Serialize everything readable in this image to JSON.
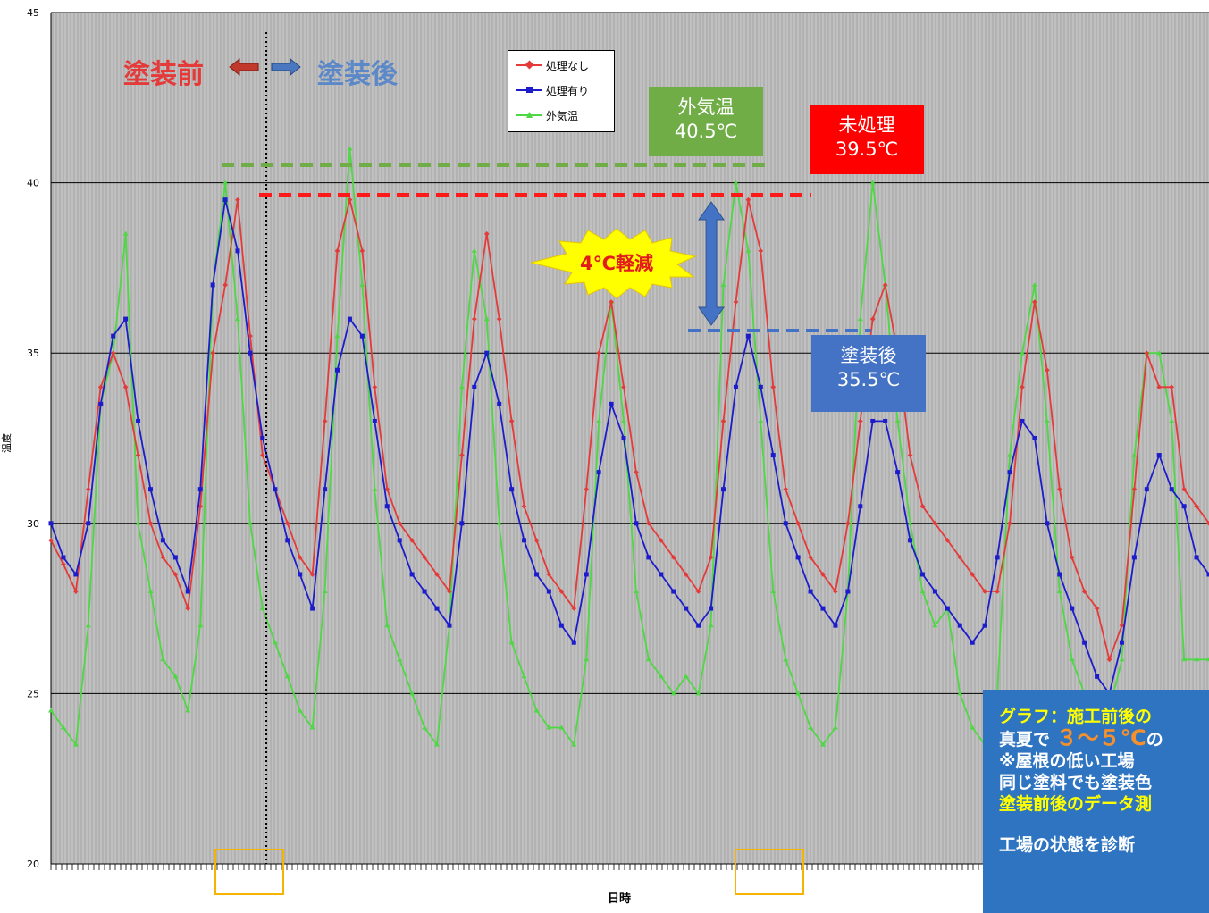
{
  "chart_data": {
    "type": "line",
    "title": "",
    "xlabel": "日時",
    "ylabel": "温度",
    "ylim": [
      20,
      45
    ],
    "yticks": [
      20,
      25,
      30,
      35,
      40,
      45
    ],
    "grid": true,
    "legend_position": "top-center",
    "series": [
      {
        "name": "処理なし",
        "color": "#e53a3a",
        "values": [
          29.5,
          28.8,
          28,
          31,
          34,
          35,
          34,
          32,
          30,
          29,
          28.5,
          27.5,
          30.5,
          35,
          37,
          39.5,
          35.5,
          32,
          31,
          30,
          29,
          28.5,
          33,
          38,
          39.5,
          38,
          34,
          31,
          30,
          29.5,
          29,
          28.5,
          28,
          32,
          36,
          38.5,
          36,
          33,
          30.5,
          29.5,
          28.5,
          28,
          27.5,
          31,
          35,
          36.5,
          34,
          31.5,
          30,
          29.5,
          29,
          28.5,
          28,
          29,
          33,
          36.5,
          39.5,
          38,
          34,
          31,
          30,
          29,
          28.5,
          28,
          30,
          33,
          36,
          37,
          35,
          32,
          30.5,
          30,
          29.5,
          29,
          28.5,
          28,
          28,
          30,
          34,
          36.5,
          34.5,
          31,
          29,
          28,
          27.5,
          26,
          27,
          31,
          35,
          34,
          34,
          31,
          30.5,
          30
        ]
      },
      {
        "name": "処理有り",
        "color": "#1c1ccc",
        "values": [
          30,
          29,
          28.5,
          30,
          33.5,
          35.5,
          36,
          33,
          31,
          29.5,
          29,
          28,
          31,
          37,
          39.5,
          38,
          35,
          32.5,
          31,
          29.5,
          28.5,
          27.5,
          31,
          34.5,
          36,
          35.5,
          33,
          30.5,
          29.5,
          28.5,
          28,
          27.5,
          27,
          30,
          34,
          35,
          33.5,
          31,
          29.5,
          28.5,
          28,
          27,
          26.5,
          28.5,
          31.5,
          33.5,
          32.5,
          30,
          29,
          28.5,
          28,
          27.5,
          27,
          27.5,
          31,
          34,
          35.5,
          34,
          32,
          30,
          29,
          28,
          27.5,
          27,
          28,
          30.5,
          33,
          33,
          31.5,
          29.5,
          28.5,
          28,
          27.5,
          27,
          26.5,
          27,
          29,
          31.5,
          33,
          32.5,
          30,
          28.5,
          27.5,
          26.5,
          25.5,
          25,
          26.5,
          29,
          31,
          32,
          31,
          30.5,
          29,
          28.5
        ]
      },
      {
        "name": "外気温",
        "color": "#4ed843",
        "values": [
          24.5,
          24,
          23.5,
          27,
          33.5,
          35,
          38.5,
          30,
          28,
          26,
          25.5,
          24.5,
          27,
          37,
          40,
          36,
          30,
          27.5,
          26.5,
          25.5,
          24.5,
          24,
          28,
          35.5,
          41,
          37,
          31,
          27,
          26,
          25,
          24,
          23.5,
          27,
          34,
          38,
          36,
          30,
          26.5,
          25.5,
          24.5,
          24,
          24,
          23.5,
          26,
          33,
          36.5,
          33,
          28,
          26,
          25.5,
          25,
          25.5,
          25,
          27,
          37,
          40,
          38,
          33,
          28,
          26,
          25,
          24,
          23.5,
          24,
          28,
          36,
          40,
          37,
          33,
          30,
          28,
          27,
          27.5,
          25,
          24,
          23.5,
          25,
          32,
          35,
          37,
          33,
          28,
          26,
          25,
          24.5,
          24.5,
          26,
          32,
          35,
          35,
          33,
          26,
          26,
          26
        ]
      }
    ]
  },
  "texts": {
    "before": "塗装前",
    "after": "塗装後",
    "box_outdoor_title": "外気温",
    "box_outdoor_value": "40.5℃",
    "box_untreated_title": "未処理",
    "box_untreated_value": "39.5℃",
    "box_coated_title": "塗装後",
    "box_coated_value": "35.5℃",
    "reduction": "4℃軽減",
    "info_line1": "グラフ：施工前後の",
    "info_line2a": "真夏で",
    "info_line2b": "３～５℃",
    "info_line2c": "の",
    "info_line3": "※屋根の低い工場",
    "info_line4": "同じ塗料でも塗装色",
    "info_line5": "塗装前後のデータ測",
    "info_line6": "工場の状態を診断"
  },
  "colors": {
    "plot_bg": "#b2b2b2",
    "green_box": "#70ad47",
    "red_box": "#ff0000",
    "blue_box": "#4472c4",
    "burst": "#ffff00",
    "info_bg": "#2e74c0"
  }
}
